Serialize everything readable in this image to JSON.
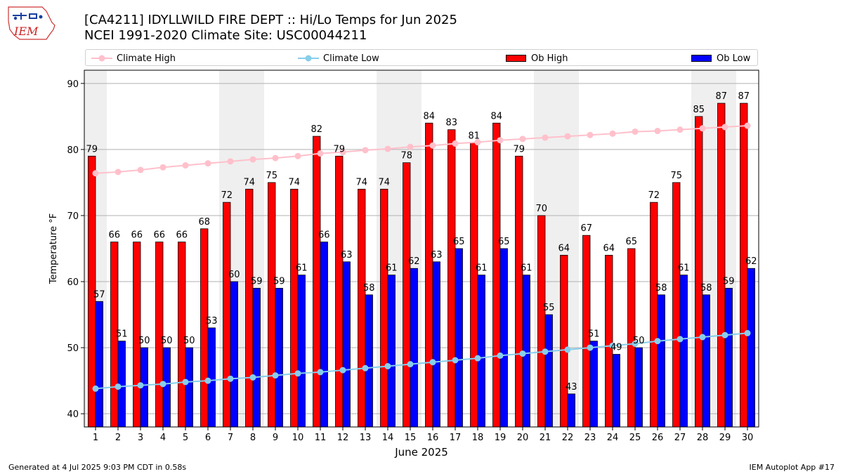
{
  "header": {
    "title_line1": "[CA4211] IDYLLWILD FIRE DEPT :: Hi/Lo Temps for Jun 2025",
    "title_line2": "NCEI 1991-2020 Climate Site: USC00044211",
    "logo_text": "IEM"
  },
  "footer": {
    "left": "Generated at 4 Jul 2025 9:03 PM CDT in 0.58s",
    "right": "IEM Autoplot App #17"
  },
  "colors": {
    "ob_high": "#ff0000",
    "ob_low": "#0000ff",
    "climate_high": "#ffc0cb",
    "climate_low": "#87ceeb",
    "weekend_shade": "#efefef",
    "grid": "#b0b0b0"
  },
  "legend": [
    {
      "label": "Climate High",
      "kind": "line",
      "color": "#ffc0cb"
    },
    {
      "label": "Climate Low",
      "kind": "line",
      "color": "#87ceeb"
    },
    {
      "label": "Ob High",
      "kind": "bar",
      "color": "#ff0000"
    },
    {
      "label": "Ob Low",
      "kind": "bar",
      "color": "#0000ff"
    }
  ],
  "chart_data": {
    "type": "bar",
    "title": "[CA4211] IDYLLWILD FIRE DEPT :: Hi/Lo Temps for Jun 2025",
    "xlabel": "June 2025",
    "ylabel": "Temperature °F",
    "ylim": [
      38,
      92
    ],
    "yticks": [
      40,
      50,
      60,
      70,
      80,
      90
    ],
    "grid": true,
    "legend_position": "top",
    "categories": [
      "1",
      "2",
      "3",
      "4",
      "5",
      "6",
      "7",
      "8",
      "9",
      "10",
      "11",
      "12",
      "13",
      "14",
      "15",
      "16",
      "17",
      "18",
      "19",
      "20",
      "21",
      "22",
      "23",
      "24",
      "25",
      "26",
      "27",
      "28",
      "29",
      "30"
    ],
    "shaded_days": [
      1,
      7,
      8,
      14,
      15,
      21,
      22,
      28,
      29
    ],
    "series": [
      {
        "name": "Ob High",
        "type": "bar",
        "values": [
          79,
          66,
          66,
          66,
          66,
          68,
          72,
          74,
          75,
          74,
          82,
          79,
          74,
          74,
          78,
          84,
          83,
          81,
          84,
          79,
          70,
          64,
          67,
          64,
          65,
          72,
          75,
          85,
          87,
          87
        ]
      },
      {
        "name": "Ob Low",
        "type": "bar",
        "values": [
          57,
          51,
          50,
          50,
          50,
          53,
          60,
          59,
          59,
          61,
          66,
          63,
          58,
          61,
          62,
          63,
          65,
          61,
          65,
          61,
          55,
          43,
          51,
          49,
          50,
          58,
          61,
          58,
          59,
          62
        ]
      },
      {
        "name": "Climate High",
        "type": "line",
        "values": [
          76.4,
          76.6,
          76.9,
          77.3,
          77.6,
          77.9,
          78.2,
          78.5,
          78.7,
          79.0,
          79.4,
          79.6,
          79.9,
          80.1,
          80.4,
          80.6,
          80.9,
          81.1,
          81.4,
          81.6,
          81.8,
          82.0,
          82.2,
          82.4,
          82.7,
          82.8,
          83.0,
          83.2,
          83.4,
          83.6
        ]
      },
      {
        "name": "Climate Low",
        "type": "line",
        "values": [
          43.8,
          44.1,
          44.3,
          44.5,
          44.8,
          45.0,
          45.3,
          45.5,
          45.8,
          46.1,
          46.3,
          46.6,
          46.9,
          47.2,
          47.5,
          47.8,
          48.1,
          48.4,
          48.8,
          49.1,
          49.4,
          49.7,
          50.0,
          50.3,
          50.6,
          51.0,
          51.3,
          51.6,
          51.9,
          52.2
        ]
      }
    ]
  }
}
